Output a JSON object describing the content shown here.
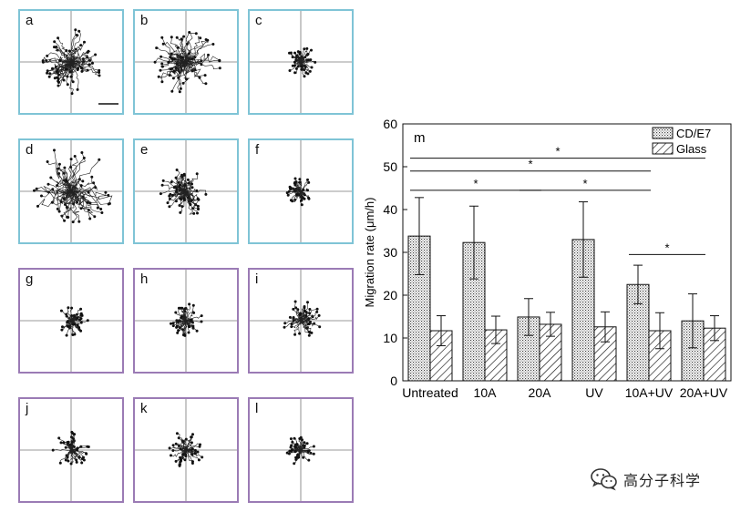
{
  "panels": [
    {
      "label": "a",
      "border": "#7fc4d6",
      "spread": 30,
      "n": 60,
      "scalebar": true
    },
    {
      "label": "b",
      "border": "#7fc4d6",
      "spread": 33,
      "n": 60,
      "scalebar": false
    },
    {
      "label": "c",
      "border": "#7fc4d6",
      "spread": 14,
      "n": 40,
      "scalebar": false
    },
    {
      "label": "d",
      "border": "#7fc4d6",
      "spread": 38,
      "n": 60,
      "scalebar": false
    },
    {
      "label": "e",
      "border": "#7fc4d6",
      "spread": 24,
      "n": 55,
      "scalebar": false
    },
    {
      "label": "f",
      "border": "#7fc4d6",
      "spread": 12,
      "n": 40,
      "scalebar": false
    },
    {
      "label": "g",
      "border": "#9b7bb5",
      "spread": 14,
      "n": 40,
      "scalebar": false
    },
    {
      "label": "h",
      "border": "#9b7bb5",
      "spread": 16,
      "n": 40,
      "scalebar": false
    },
    {
      "label": "i",
      "border": "#9b7bb5",
      "spread": 18,
      "n": 40,
      "scalebar": false
    },
    {
      "label": "j",
      "border": "#9b7bb5",
      "spread": 16,
      "n": 40,
      "scalebar": false
    },
    {
      "label": "k",
      "border": "#9b7bb5",
      "spread": 16,
      "n": 40,
      "scalebar": false
    },
    {
      "label": "l",
      "border": "#9b7bb5",
      "spread": 13,
      "n": 40,
      "scalebar": false
    }
  ],
  "chart_data": {
    "type": "bar",
    "panel_label": "m",
    "ylabel": "Migration rate (μm/h)",
    "ylim": [
      0,
      60
    ],
    "yticks": [
      0,
      10,
      20,
      30,
      40,
      50,
      60
    ],
    "categories": [
      "Untreated",
      "10A",
      "20A",
      "UV",
      "10A+UV",
      "20A+UV"
    ],
    "series": [
      {
        "name": "CD/E7",
        "pattern": "dots",
        "values": [
          33.8,
          32.3,
          14.9,
          33.0,
          22.5,
          14.0
        ],
        "errors": [
          9.0,
          8.5,
          4.3,
          8.8,
          4.5,
          6.3
        ]
      },
      {
        "name": "Glass",
        "pattern": "hatch",
        "values": [
          11.7,
          11.9,
          13.2,
          12.6,
          11.7,
          12.3
        ],
        "errors": [
          3.5,
          3.2,
          2.8,
          3.5,
          4.2,
          2.9
        ]
      }
    ],
    "significance": [
      {
        "from": 0,
        "to": 5,
        "label": "*",
        "y": 52
      },
      {
        "from": 0,
        "to": 4,
        "label": "*",
        "y": 49
      },
      {
        "from": 0,
        "to": 2,
        "label": "*",
        "y": 44.5
      },
      {
        "from": 2,
        "to": 4,
        "label": "*",
        "y": 44.5
      },
      {
        "from": 4,
        "to": 5,
        "label": "*",
        "y": 29.5
      }
    ],
    "legend": "top-right"
  },
  "watermark": {
    "text": "高分子科学"
  }
}
